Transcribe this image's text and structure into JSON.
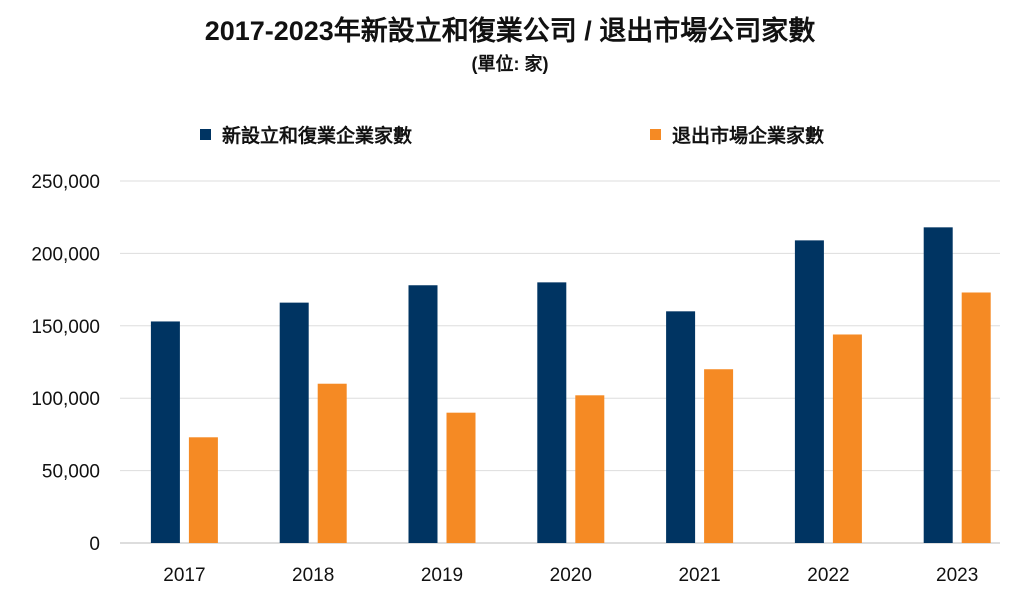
{
  "chart_data": {
    "type": "bar",
    "title": "2017-2023年新設立和復業公司 / 退出市場公司家數",
    "subtitle": "(單位: 家)",
    "categories": [
      "2017",
      "2018",
      "2019",
      "2020",
      "2021",
      "2022",
      "2023"
    ],
    "series": [
      {
        "name": "新設立和復業企業家數",
        "color": "#003462",
        "values": [
          153000,
          166000,
          178000,
          180000,
          160000,
          209000,
          218000
        ]
      },
      {
        "name": "退出市場企業家數",
        "color": "#f58a24",
        "values": [
          73000,
          110000,
          90000,
          102000,
          120000,
          144000,
          173000
        ]
      }
    ],
    "ylim": [
      0,
      250000
    ],
    "yticks": [
      "0",
      "50,000",
      "100,000",
      "150,000",
      "200,000",
      "250,000"
    ],
    "grid": true,
    "legend_position": "top"
  }
}
